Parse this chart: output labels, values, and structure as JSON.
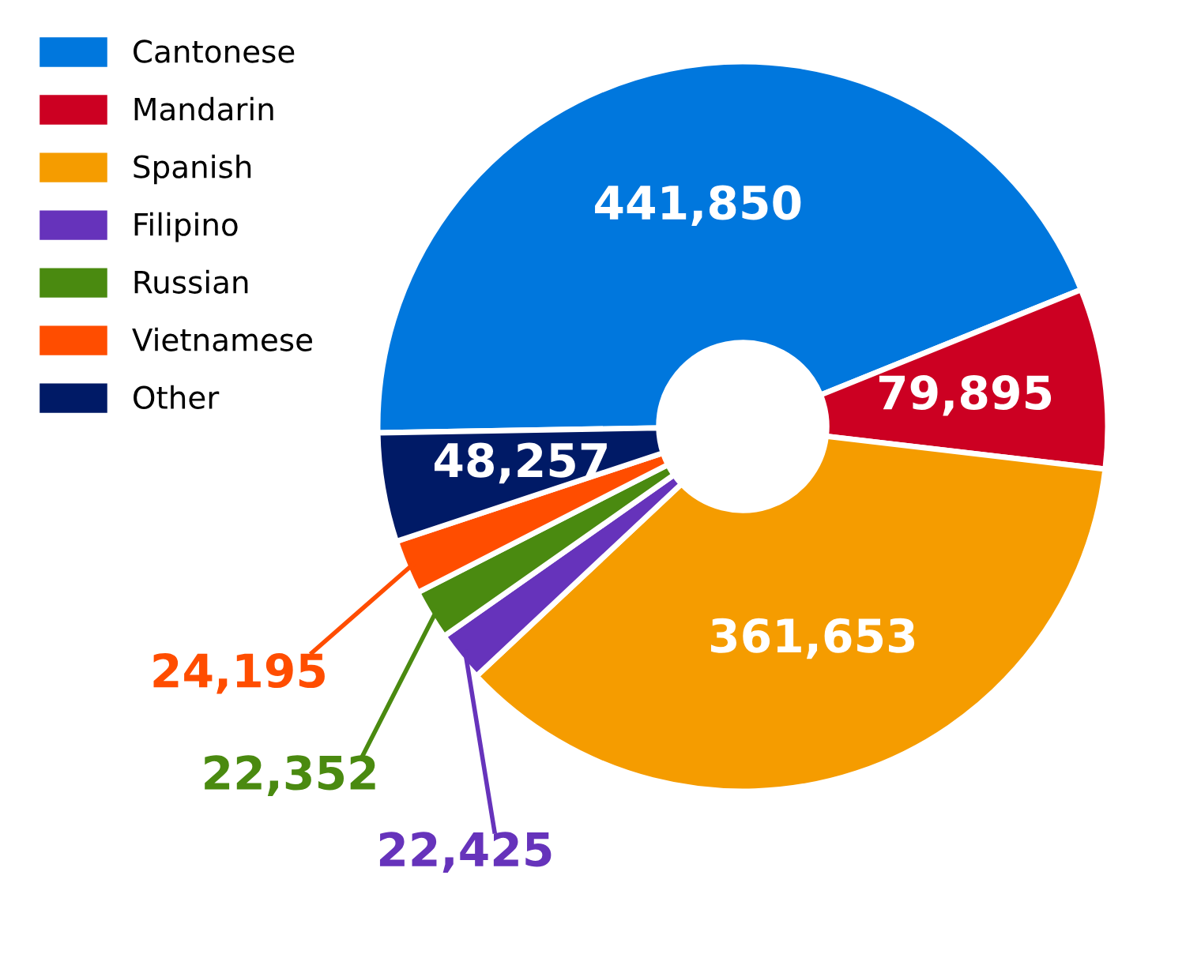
{
  "chart_data": {
    "type": "donut",
    "categories": [
      "Cantonese",
      "Mandarin",
      "Spanish",
      "Filipino",
      "Russian",
      "Vietnamese",
      "Other"
    ],
    "values": [
      441850,
      79895,
      361653,
      22425,
      22352,
      24195,
      48257
    ],
    "colors": [
      "#0077dd",
      "#cc0022",
      "#f59c00",
      "#6633bb",
      "#4a8a10",
      "#ff4d00",
      "#001a66"
    ],
    "value_labels": [
      "441,850",
      "79,895",
      "361,653",
      "22,425",
      "22,352",
      "24,195",
      "48,257"
    ],
    "legend": "top left"
  }
}
